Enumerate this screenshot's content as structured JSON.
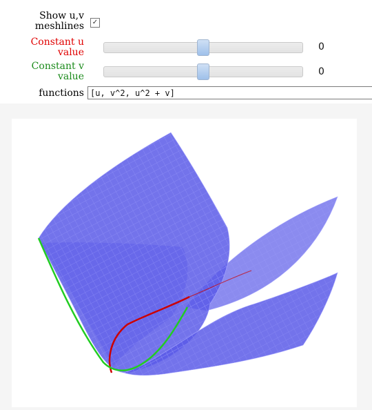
{
  "controls": {
    "mesh_label_line1": "Show u,v",
    "mesh_label_line2": "meshlines",
    "mesh_checked_glyph": "✓",
    "u_label_line1": "Constant u",
    "u_label_line2": "value",
    "u_value": "0",
    "u_fraction": 0.5,
    "v_label_line1": "Constant v",
    "v_label_line2": "value",
    "v_value": "0",
    "v_fraction": 0.5,
    "functions_label": "functions",
    "functions_value": "[u, v^2, u^2 + v]"
  },
  "colors": {
    "u_label": "#e00000",
    "v_label": "#1a8a1a",
    "surface": "#5a5ae8",
    "mesh": "#a8a8ff",
    "u_curve": "#cc0000",
    "v_curve": "#22cc22"
  }
}
